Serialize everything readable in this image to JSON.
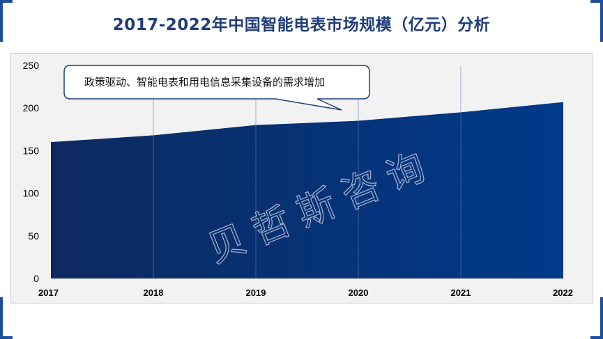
{
  "title": "2017-2022年中国智能电表市场规模（亿元）分析",
  "watermark": "贝哲斯咨询",
  "colors": {
    "accent": "#1f4e9a",
    "area_dark": "#0d2a60",
    "area_light": "#003a8a",
    "title": "#1f3d7a"
  },
  "chart_data": {
    "type": "area",
    "title": "2017-2022年中国智能电表市场规模（亿元）分析",
    "categories": [
      "2017",
      "2018",
      "2019",
      "2020",
      "2021",
      "2022"
    ],
    "series": [
      {
        "values": [
          160,
          168,
          180,
          185,
          195,
          207
        ]
      }
    ],
    "yticks": [
      0,
      50,
      100,
      150,
      200,
      250
    ],
    "ylim": [
      0,
      250
    ],
    "xlabel": "",
    "ylabel": "",
    "grid": "vertical",
    "legend": "none",
    "annotations": [
      {
        "text": "政策驱动、智能电表和用电信息采集设备的需求增加",
        "target_category": "2020"
      }
    ]
  }
}
